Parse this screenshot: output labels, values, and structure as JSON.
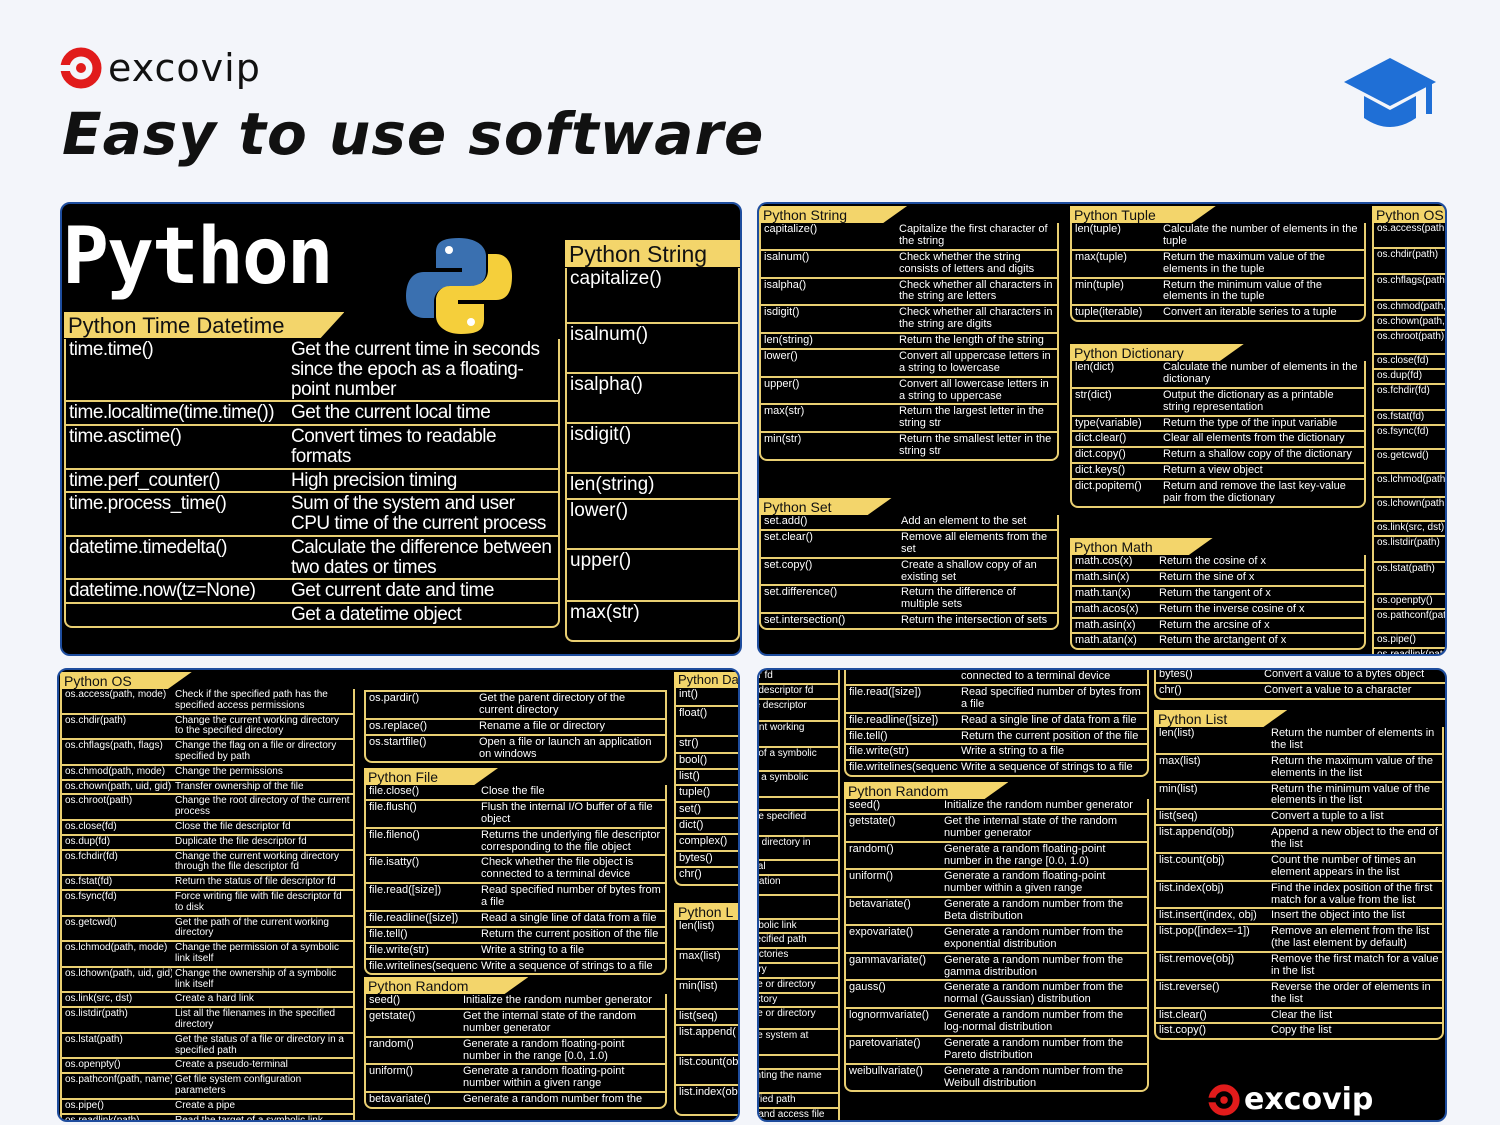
{
  "brand": {
    "name": "excovip",
    "logo_color": "#e11b1b"
  },
  "headline": "Easy to use software",
  "icons": {
    "top_right": "graduation-cap-icon",
    "cap_color": "#1f6fd6"
  },
  "colors": {
    "pad_bg": "#000000",
    "header_yellow": "#f3d56b",
    "border_yellow": "#e9cf72"
  },
  "pad1": {
    "title": "Python",
    "datetime": {
      "header": "Python Time Datetime",
      "rows": [
        [
          "time.time()",
          "Get the current time in seconds since the epoch as a floating-point number"
        ],
        [
          "time.localtime(time.time())",
          "Get the current local time"
        ],
        [
          "time.asctime()",
          "Convert times to readable formats"
        ],
        [
          "time.perf_counter()",
          "High precision timing"
        ],
        [
          "time.process_time()",
          "Sum of the system and user CPU time of the current process"
        ],
        [
          "datetime.timedelta()",
          "Calculate the difference between two dates or times"
        ],
        [
          "datetime.now(tz=None)",
          "Get current date and time"
        ],
        [
          "",
          "Get a datetime object"
        ]
      ]
    },
    "string": {
      "header": "Python String",
      "rows": [
        [
          "capitalize()",
          ""
        ],
        [
          "isalnum()",
          ""
        ],
        [
          "isalpha()",
          ""
        ],
        [
          "isdigit()",
          ""
        ],
        [
          "len(string)",
          ""
        ],
        [
          "lower()",
          ""
        ],
        [
          "upper()",
          ""
        ],
        [
          "max(str)",
          ""
        ]
      ]
    }
  },
  "pad2": {
    "string": {
      "header": "Python String",
      "rows": [
        [
          "capitalize()",
          "Capitalize the first character of the string"
        ],
        [
          "isalnum()",
          "Check whether the string consists of letters and digits"
        ],
        [
          "isalpha()",
          "Check whether all characters in the string are letters"
        ],
        [
          "isdigit()",
          "Check whether all characters in the string are digits"
        ],
        [
          "len(string)",
          "Return the length of the string"
        ],
        [
          "lower()",
          "Convert all uppercase letters in a string to lowercase"
        ],
        [
          "upper()",
          "Convert all lowercase letters in a string to uppercase"
        ],
        [
          "max(str)",
          "Return the largest letter in the string str"
        ],
        [
          "min(str)",
          "Return the smallest letter in the string str"
        ]
      ]
    },
    "set": {
      "header": "Python Set",
      "rows": [
        [
          "set.add()",
          "Add an element to the set"
        ],
        [
          "set.clear()",
          "Remove all elements from the set"
        ],
        [
          "set.copy()",
          "Create a shallow copy of an existing set"
        ],
        [
          "set.difference()",
          "Return the difference of multiple sets"
        ],
        [
          "set.intersection()",
          "Return the intersection of sets"
        ]
      ]
    },
    "tuple": {
      "header": "Python Tuple",
      "rows": [
        [
          "len(tuple)",
          "Calculate the number of elements in the tuple"
        ],
        [
          "max(tuple)",
          "Return the maximum value of the elements in the tuple"
        ],
        [
          "min(tuple)",
          "Return the minimum value of the elements in the tuple"
        ],
        [
          "tuple(iterable)",
          "Convert an iterable series to a tuple"
        ]
      ]
    },
    "dict": {
      "header": "Python Dictionary",
      "rows": [
        [
          "len(dict)",
          "Calculate the number of elements in the dictionary"
        ],
        [
          "str(dict)",
          "Output the dictionary as a printable string representation"
        ],
        [
          "type(variable)",
          "Return the type of the input variable"
        ],
        [
          "dict.clear()",
          "Clear all elements from the dictionary"
        ],
        [
          "dict.copy()",
          "Return a shallow copy of the dictionary"
        ],
        [
          "dict.keys()",
          "Return a view object"
        ],
        [
          "dict.popitem()",
          "Return and remove the last key-value pair from the dictionary"
        ]
      ]
    },
    "math": {
      "header": "Python Math",
      "rows": [
        [
          "math.cos(x)",
          "Return the cosine of x"
        ],
        [
          "math.sin(x)",
          "Return the sine of x"
        ],
        [
          "math.tan(x)",
          "Return the tangent of x"
        ],
        [
          "math.acos(x)",
          "Return the inverse cosine of x"
        ],
        [
          "math.asin(x)",
          "Return the arcsine of x"
        ],
        [
          "math.atan(x)",
          "Return the arctangent of x"
        ]
      ]
    },
    "os": {
      "header": "Python OS",
      "rows": [
        [
          "os.access(path,",
          ""
        ],
        [
          "os.chdir(path)",
          ""
        ],
        [
          "os.chflags(path",
          ""
        ],
        [
          "os.chmod(path,",
          ""
        ],
        [
          "os.chown(path,",
          ""
        ],
        [
          "os.chroot(path)",
          ""
        ],
        [
          "os.close(fd)",
          ""
        ],
        [
          "os.dup(fd)",
          ""
        ],
        [
          "os.fchdir(fd)",
          ""
        ],
        [
          "os.fstat(fd)",
          ""
        ],
        [
          "os.fsync(fd)",
          ""
        ],
        [
          "os.getcwd()",
          ""
        ],
        [
          "os.lchmod(path",
          ""
        ],
        [
          "os.lchown(path,",
          ""
        ],
        [
          "os.link(src, dst)",
          ""
        ],
        [
          "os.listdir(path)",
          ""
        ],
        [
          "os.lstat(path)",
          ""
        ],
        [
          "os.openpty()",
          ""
        ],
        [
          "os.pathconf(pat",
          ""
        ],
        [
          "os.pipe()",
          ""
        ],
        [
          "os.readlink(pat",
          ""
        ]
      ]
    }
  },
  "pad3": {
    "os": {
      "header": "Python OS",
      "rows": [
        [
          "os.access(path, mode)",
          "Check if the specified path has the specified access permissions"
        ],
        [
          "os.chdir(path)",
          "Change the current working directory to the specified directory"
        ],
        [
          "os.chflags(path, flags)",
          "Change the flag on a file or directory specified by path"
        ],
        [
          "os.chmod(path, mode)",
          "Change the permissions"
        ],
        [
          "os.chown(path, uid, gid)",
          "Transfer ownership of the file"
        ],
        [
          "os.chroot(path)",
          "Change the root directory of the current process"
        ],
        [
          "os.close(fd)",
          "Close the file descriptor fd"
        ],
        [
          "os.dup(fd)",
          "Duplicate the file descriptor fd"
        ],
        [
          "os.fchdir(fd)",
          "Change the current working directory through the file descriptor fd"
        ],
        [
          "os.fstat(fd)",
          "Return the status of file descriptor fd"
        ],
        [
          "os.fsync(fd)",
          "Force writing file with file descriptor fd to disk"
        ],
        [
          "os.getcwd()",
          "Get the path of the current working directory"
        ],
        [
          "os.lchmod(path, mode)",
          "Change the permission of a symbolic link itself"
        ],
        [
          "os.lchown(path, uid, gid)",
          "Change the ownership of a symbolic link itself"
        ],
        [
          "os.link(src, dst)",
          "Create a hard link"
        ],
        [
          "os.listdir(path)",
          "List all the filenames in the specified directory"
        ],
        [
          "os.lstat(path)",
          "Get the status of a file or directory in a specified path"
        ],
        [
          "os.openpty()",
          "Create a pseudo-terminal"
        ],
        [
          "os.pathconf(path, name)",
          "Get file system configuration parameters"
        ],
        [
          "os.pipe()",
          "Create a pipe"
        ],
        [
          "os.readlink(path)",
          "Read the target of a symbolic link"
        ]
      ]
    },
    "os2": {
      "header": "",
      "rows": [
        [
          "os.pardir()",
          "Get the parent directory of the current directory"
        ],
        [
          "os.replace()",
          "Rename a file or directory"
        ],
        [
          "os.startfile()",
          "Open a file or launch an application on windows"
        ]
      ]
    },
    "file": {
      "header": "Python File",
      "rows": [
        [
          "file.close()",
          "Close the file"
        ],
        [
          "file.flush()",
          "Flush the internal I/O buffer of a file object"
        ],
        [
          "file.fileno()",
          "Returns the underlying file descriptor corresponding to the file object"
        ],
        [
          "file.isatty()",
          "Check whether the file object is connected to a terminal device"
        ],
        [
          "file.read([size])",
          "Read specified number of bytes from a file"
        ],
        [
          "file.readline([size])",
          "Read a single line of data from a file"
        ],
        [
          "file.tell()",
          "Return the current position of the file"
        ],
        [
          "file.write(str)",
          "Write a string to a file"
        ],
        [
          "file.writelines(sequence)",
          "Write a sequence of strings to a file"
        ]
      ]
    },
    "random": {
      "header": "Python Random",
      "rows": [
        [
          "seed()",
          "Initialize the random number generator"
        ],
        [
          "getstate()",
          "Get the internal state of the random number generator"
        ],
        [
          "random()",
          "Generate a random floating-point number in the range [0.0, 1.0)"
        ],
        [
          "uniform()",
          "Generate a random floating-point number within a given range"
        ],
        [
          "betavariate()",
          "Generate a random number from the"
        ]
      ]
    },
    "datatype": {
      "header": "Python Da",
      "rows": [
        [
          "int()",
          ""
        ],
        [
          "float()",
          ""
        ],
        [
          "str()",
          ""
        ],
        [
          "bool()",
          ""
        ],
        [
          "list()",
          ""
        ],
        [
          "tuple()",
          ""
        ],
        [
          "set()",
          ""
        ],
        [
          "dict()",
          ""
        ],
        [
          "complex()",
          ""
        ],
        [
          "bytes()",
          ""
        ],
        [
          "chr()",
          ""
        ]
      ]
    },
    "list": {
      "header": "Python L",
      "rows": [
        [
          "len(list)",
          ""
        ],
        [
          "max(list)",
          ""
        ],
        [
          "min(list)",
          ""
        ],
        [
          "list(seq)",
          ""
        ],
        [
          "list.append(",
          ""
        ],
        [
          "list.count(ob",
          ""
        ],
        [
          "list.index(ob",
          ""
        ]
      ]
    }
  },
  "pad4": {
    "osfrag": {
      "header": "",
      "rows": [
        [
          "tor fd",
          ""
        ],
        [
          "e descriptor fd",
          ""
        ],
        [
          "ile descriptor",
          ""
        ],
        [
          "rent working",
          ""
        ],
        [
          "n of a symbolic",
          ""
        ],
        [
          "of a symbolic",
          ""
        ],
        [
          "",
          ""
        ],
        [
          "the specified",
          ""
        ],
        [
          "or directory in",
          ""
        ],
        [
          "inal",
          ""
        ],
        [
          "uration",
          ""
        ],
        [
          "",
          ""
        ],
        [
          "mbolic link",
          ""
        ],
        [
          "pecified path",
          ""
        ],
        [
          "rectories",
          ""
        ],
        [
          "tory",
          ""
        ],
        [
          "file or directory",
          ""
        ],
        [
          "ectory",
          ""
        ],
        [
          "file or directory",
          ""
        ],
        [
          "file system at",
          ""
        ],
        [
          "",
          ""
        ],
        [
          "enting the name",
          ""
        ],
        [
          "cified path",
          ""
        ],
        [
          "n and access file",
          ""
        ]
      ]
    },
    "file": {
      "header": "",
      "rows": [
        [
          "",
          "connected to a terminal device"
        ],
        [
          "file.read([size])",
          "Read specified number of bytes from a file"
        ],
        [
          "file.readline([size])",
          "Read a single line of data from a file"
        ],
        [
          "file.tell()",
          "Return the current position of the file"
        ],
        [
          "file.write(str)",
          "Write a string to a file"
        ],
        [
          "file.writelines(sequence)",
          "Write a sequence of strings to a file"
        ]
      ]
    },
    "random": {
      "header": "Python Random",
      "rows": [
        [
          "seed()",
          "Initialize the random number generator"
        ],
        [
          "getstate()",
          "Get the internal state of the random number generator"
        ],
        [
          "random()",
          "Generate a random floating-point number in the range [0.0, 1.0)"
        ],
        [
          "uniform()",
          "Generate a random floating-point number within a given range"
        ],
        [
          "betavariate()",
          "Generate a random number from the Beta distribution"
        ],
        [
          "expovariate()",
          "Generate a random number from the exponential distribution"
        ],
        [
          "gammavariate()",
          "Generate a random number from the gamma distribution"
        ],
        [
          "gauss()",
          "Generate a random number from the normal (Gaussian) distribution"
        ],
        [
          "lognormvariate()",
          "Generate a random number from the log-normal distribution"
        ],
        [
          "paretovariate()",
          "Generate a random number from the Pareto distribution"
        ],
        [
          "weibullvariate()",
          "Generate a random number from the Weibull distribution"
        ]
      ]
    },
    "conv": {
      "header": "",
      "rows": [
        [
          "bytes()",
          "Convert a value to a bytes object"
        ],
        [
          "chr()",
          "Convert a value to a character"
        ]
      ]
    },
    "list": {
      "header": "Python List",
      "rows": [
        [
          "len(list)",
          "Return the number of elements in the list"
        ],
        [
          "max(list)",
          "Return the maximum value of the elements in the list"
        ],
        [
          "min(list)",
          "Return the minimum value of the elements in the list"
        ],
        [
          "list(seq)",
          "Convert a tuple to a list"
        ],
        [
          "list.append(obj)",
          "Append a new object to the end of the list"
        ],
        [
          "list.count(obj)",
          "Count the number of times an element appears in the list"
        ],
        [
          "list.index(obj)",
          "Find the index position of the first match for a value from the list"
        ],
        [
          "list.insert(index, obj)",
          "Insert the object into the list"
        ],
        [
          "list.pop([index=-1])",
          "Remove an element from the list (the last element by default)"
        ],
        [
          "list.remove(obj)",
          "Remove the first match for a value in the list"
        ],
        [
          "list.reverse()",
          "Reverse the order of elements in the list"
        ],
        [
          "list.clear()",
          "Clear the list"
        ],
        [
          "list.copy()",
          "Copy the list"
        ]
      ]
    },
    "brand": "excovip"
  }
}
